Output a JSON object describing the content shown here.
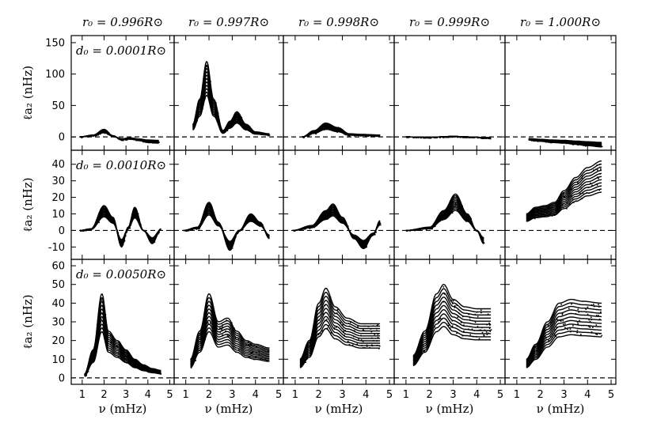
{
  "chart_data": {
    "type": "scatter",
    "layout": "3x5 grid of panels",
    "x_label": "ν (mHz)",
    "y_label": "ℓa₂ (nHz)",
    "x_ticks": [
      1,
      2,
      3,
      4,
      5
    ],
    "x_range": [
      0.5,
      5.2
    ],
    "column_titles": [
      "r₀ = 0.996R⊙",
      "r₀ = 0.997R⊙",
      "r₀ = 0.998R⊙",
      "r₀ = 0.999R⊙",
      "r₀ = 1.000R⊙"
    ],
    "reference_line": "dashed horizontal line at ℓa₂ = 0",
    "rows": [
      {
        "annotation": "d₀ = 0.0001R⊙",
        "y_range": [
          -20,
          160
        ],
        "y_ticks": [
          0,
          50,
          100,
          150
        ],
        "panels": [
          {
            "r0": 0.996,
            "curve": [
              [
                0.9,
                0
              ],
              [
                1.5,
                3
              ],
              [
                2.0,
                12
              ],
              [
                2.4,
                2
              ],
              [
                2.8,
                -5
              ],
              [
                3.2,
                -3
              ],
              [
                3.6,
                -6
              ],
              [
                4.0,
                -9
              ],
              [
                4.5,
                -10
              ]
            ]
          },
          {
            "r0": 0.997,
            "curve": [
              [
                1.3,
                20
              ],
              [
                1.6,
                60
              ],
              [
                1.9,
                120
              ],
              [
                2.2,
                60
              ],
              [
                2.6,
                10
              ],
              [
                2.9,
                25
              ],
              [
                3.2,
                40
              ],
              [
                3.6,
                20
              ],
              [
                4.0,
                8
              ],
              [
                4.6,
                5
              ]
            ]
          },
          {
            "r0": 0.998,
            "curve": [
              [
                1.3,
                0
              ],
              [
                1.8,
                10
              ],
              [
                2.3,
                22
              ],
              [
                2.8,
                15
              ],
              [
                3.3,
                5
              ],
              [
                3.8,
                4
              ],
              [
                4.6,
                3
              ]
            ]
          },
          {
            "r0": 0.999,
            "curve": [
              [
                1.0,
                0
              ],
              [
                2.0,
                -1
              ],
              [
                2.5,
                0
              ],
              [
                3.0,
                1
              ],
              [
                3.5,
                0
              ],
              [
                4.6,
                -2
              ]
            ]
          },
          {
            "r0": 1.0,
            "curve": [
              [
                1.5,
                -5
              ],
              [
                2.0,
                -7
              ],
              [
                2.5,
                -9
              ],
              [
                3.0,
                -10
              ],
              [
                3.5,
                -12
              ],
              [
                4.0,
                -14
              ],
              [
                4.6,
                -16
              ]
            ]
          }
        ]
      },
      {
        "annotation": "d₀ = 0.0010R⊙",
        "y_range": [
          -17,
          48
        ],
        "y_ticks": [
          -10,
          0,
          10,
          20,
          30,
          40
        ],
        "panels": [
          {
            "r0": 0.996,
            "curve": [
              [
                0.9,
                0
              ],
              [
                1.4,
                1
              ],
              [
                2.0,
                15
              ],
              [
                2.4,
                8
              ],
              [
                2.8,
                -10
              ],
              [
                3.1,
                2
              ],
              [
                3.4,
                14
              ],
              [
                3.8,
                0
              ],
              [
                4.2,
                -8
              ],
              [
                4.6,
                1
              ]
            ]
          },
          {
            "r0": 0.997,
            "curve": [
              [
                0.9,
                0
              ],
              [
                1.5,
                2
              ],
              [
                2.0,
                17
              ],
              [
                2.4,
                5
              ],
              [
                2.9,
                -12
              ],
              [
                3.3,
                0
              ],
              [
                3.8,
                10
              ],
              [
                4.2,
                5
              ],
              [
                4.6,
                -5
              ]
            ]
          },
          {
            "r0": 0.998,
            "curve": [
              [
                0.9,
                0
              ],
              [
                1.7,
                3
              ],
              [
                2.3,
                12
              ],
              [
                2.6,
                16
              ],
              [
                3.0,
                8
              ],
              [
                3.5,
                -5
              ],
              [
                3.9,
                -11
              ],
              [
                4.3,
                -3
              ],
              [
                4.6,
                6
              ]
            ]
          },
          {
            "r0": 0.999,
            "curve": [
              [
                1.0,
                0
              ],
              [
                2.0,
                2
              ],
              [
                2.6,
                12
              ],
              [
                3.1,
                22
              ],
              [
                3.6,
                10
              ],
              [
                4.0,
                0
              ],
              [
                4.3,
                -8
              ]
            ]
          },
          {
            "r0": 1.0,
            "curve": [
              [
                1.4,
                10
              ],
              [
                1.8,
                14
              ],
              [
                2.2,
                15
              ],
              [
                2.6,
                17
              ],
              [
                3.0,
                24
              ],
              [
                3.5,
                32
              ],
              [
                4.0,
                38
              ],
              [
                4.6,
                42
              ]
            ]
          }
        ]
      },
      {
        "annotation": "d₀ = 0.0050R⊙",
        "y_range": [
          -3,
          63
        ],
        "y_ticks": [
          0,
          10,
          20,
          30,
          40,
          50,
          60
        ],
        "panels": [
          {
            "r0": 0.996,
            "curve": [
              [
                1.1,
                2
              ],
              [
                1.5,
                15
              ],
              [
                1.9,
                45
              ],
              [
                2.2,
                25
              ],
              [
                2.6,
                20
              ],
              [
                3.0,
                15
              ],
              [
                3.4,
                10
              ],
              [
                3.8,
                7
              ],
              [
                4.2,
                5
              ],
              [
                4.6,
                4
              ]
            ]
          },
          {
            "r0": 0.997,
            "curve": [
              [
                1.2,
                10
              ],
              [
                1.6,
                25
              ],
              [
                2.0,
                45
              ],
              [
                2.4,
                30
              ],
              [
                2.8,
                32
              ],
              [
                3.2,
                25
              ],
              [
                3.6,
                20
              ],
              [
                4.0,
                18
              ],
              [
                4.6,
                16
              ]
            ]
          },
          {
            "r0": 0.998,
            "curve": [
              [
                1.2,
                10
              ],
              [
                1.6,
                20
              ],
              [
                2.0,
                40
              ],
              [
                2.3,
                48
              ],
              [
                2.7,
                38
              ],
              [
                3.2,
                32
              ],
              [
                3.8,
                29
              ],
              [
                4.6,
                29
              ]
            ]
          },
          {
            "r0": 0.999,
            "curve": [
              [
                1.3,
                12
              ],
              [
                1.8,
                25
              ],
              [
                2.3,
                45
              ],
              [
                2.6,
                50
              ],
              [
                3.0,
                42
              ],
              [
                3.5,
                38
              ],
              [
                4.0,
                37
              ],
              [
                4.6,
                37
              ]
            ]
          },
          {
            "r0": 1.0,
            "curve": [
              [
                1.4,
                10
              ],
              [
                1.8,
                18
              ],
              [
                2.3,
                30
              ],
              [
                2.8,
                40
              ],
              [
                3.3,
                42
              ],
              [
                3.8,
                41
              ],
              [
                4.6,
                40
              ]
            ]
          }
        ]
      }
    ]
  }
}
